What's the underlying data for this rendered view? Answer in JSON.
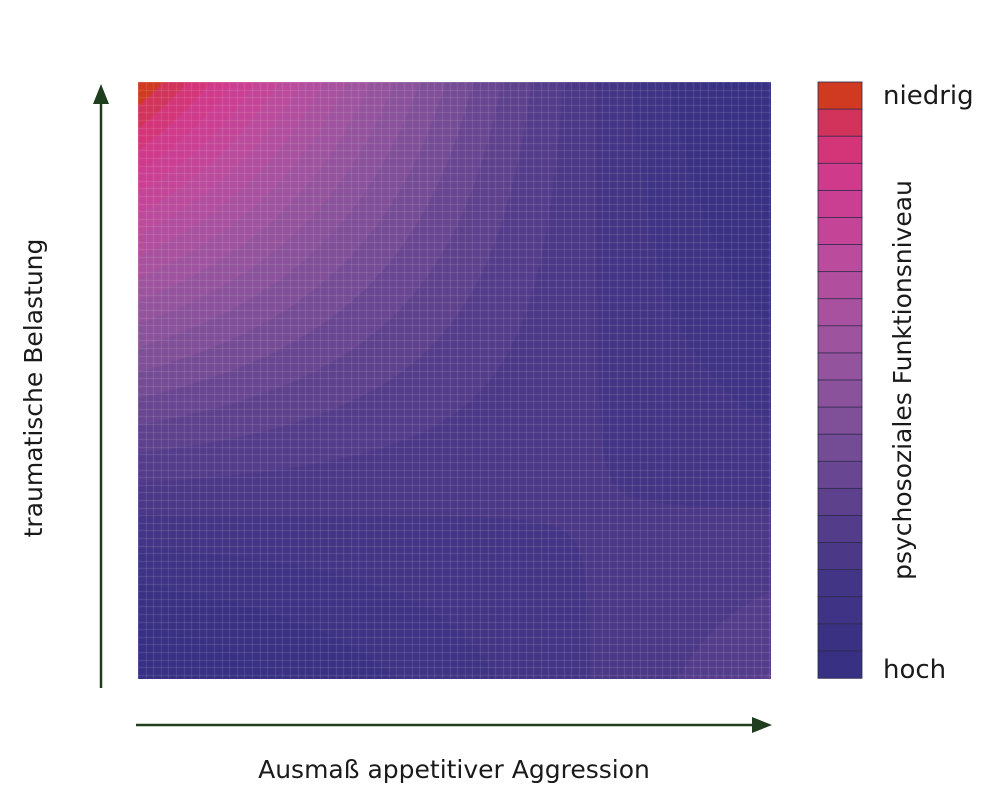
{
  "chart_data": {
    "type": "heatmap",
    "title": "",
    "xlabel": "Ausmaß appetitiver Aggression",
    "ylabel": "traumatische Belastung",
    "colorbar": {
      "label": "psychosoziales Funktionsniveau",
      "top_label": "niedrig",
      "bottom_label": "hoch",
      "levels": 22,
      "colors_top_to_bottom": [
        "#cf3a20",
        "#d1335a",
        "#d33578",
        "#d03a8a",
        "#cb3f93",
        "#c44598",
        "#bb4b9c",
        "#b24e9e",
        "#a8519e",
        "#9e539e",
        "#94539d",
        "#8a529b",
        "#7f4f98",
        "#744b95",
        "#684691",
        "#5d418d",
        "#533c8a",
        "#4b3887",
        "#433585",
        "#3e3384",
        "#3a3183",
        "#373083"
      ]
    },
    "grid": true,
    "note_function": "saddle-shaped surface: high at low aggression/high trauma, low at high aggression/high trauma and low aggression/low trauma, rising again at high aggression/low trauma"
  },
  "colors": {
    "axis_arrow": "#1f3d1f",
    "text": "#1a1a1a"
  }
}
